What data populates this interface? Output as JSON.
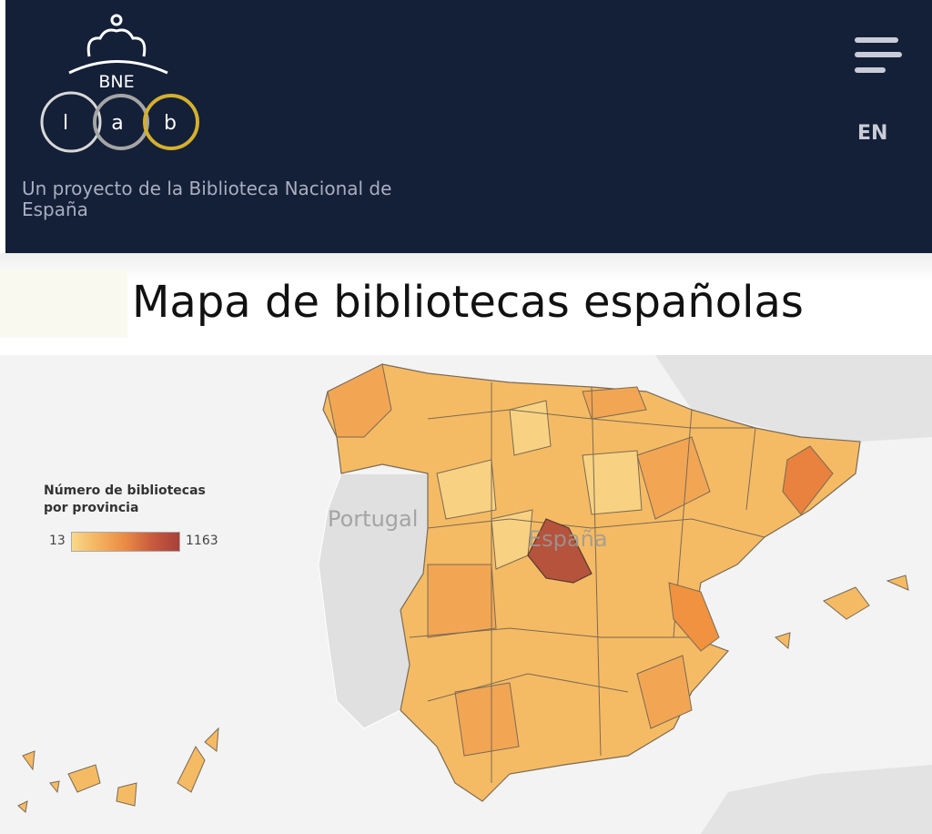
{
  "header": {
    "logo": {
      "text": "BNE",
      "letters": [
        "l",
        "a",
        "b"
      ]
    },
    "tagline": "Un proyecto de la Biblioteca Nacional de España",
    "language": "EN"
  },
  "page_title": "Mapa de bibliotecas españolas",
  "map": {
    "legend": {
      "title": "Número de bibliotecas por provincia",
      "min": 13,
      "max": 1163
    },
    "labels": [
      "Portugal",
      "España"
    ]
  }
}
